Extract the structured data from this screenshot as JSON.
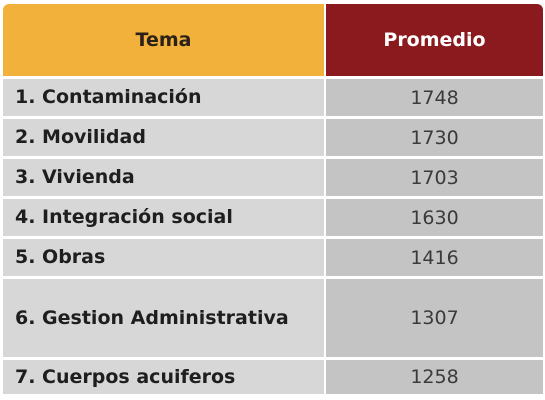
{
  "chart_data": {
    "type": "table",
    "columns": [
      "Tema",
      "Promedio"
    ],
    "rows": [
      {
        "tema": "1. Contaminación",
        "promedio": "1748"
      },
      {
        "tema": "2. Movilidad",
        "promedio": "1730"
      },
      {
        "tema": "3. Vivienda",
        "promedio": "1703"
      },
      {
        "tema": "4. Integración social",
        "promedio": "1630"
      },
      {
        "tema": "5. Obras",
        "promedio": "1416"
      },
      {
        "tema": "6. Gestion Administrativa",
        "promedio": "1307"
      },
      {
        "tema": "7. Cuerpos acuiferos",
        "promedio": "1258"
      }
    ]
  },
  "colors": {
    "header_left": "#f2b13a",
    "header_right": "#8b1a1e",
    "row_name_bg": "#d7d7d8",
    "row_value_bg": "#c4c4c5"
  }
}
